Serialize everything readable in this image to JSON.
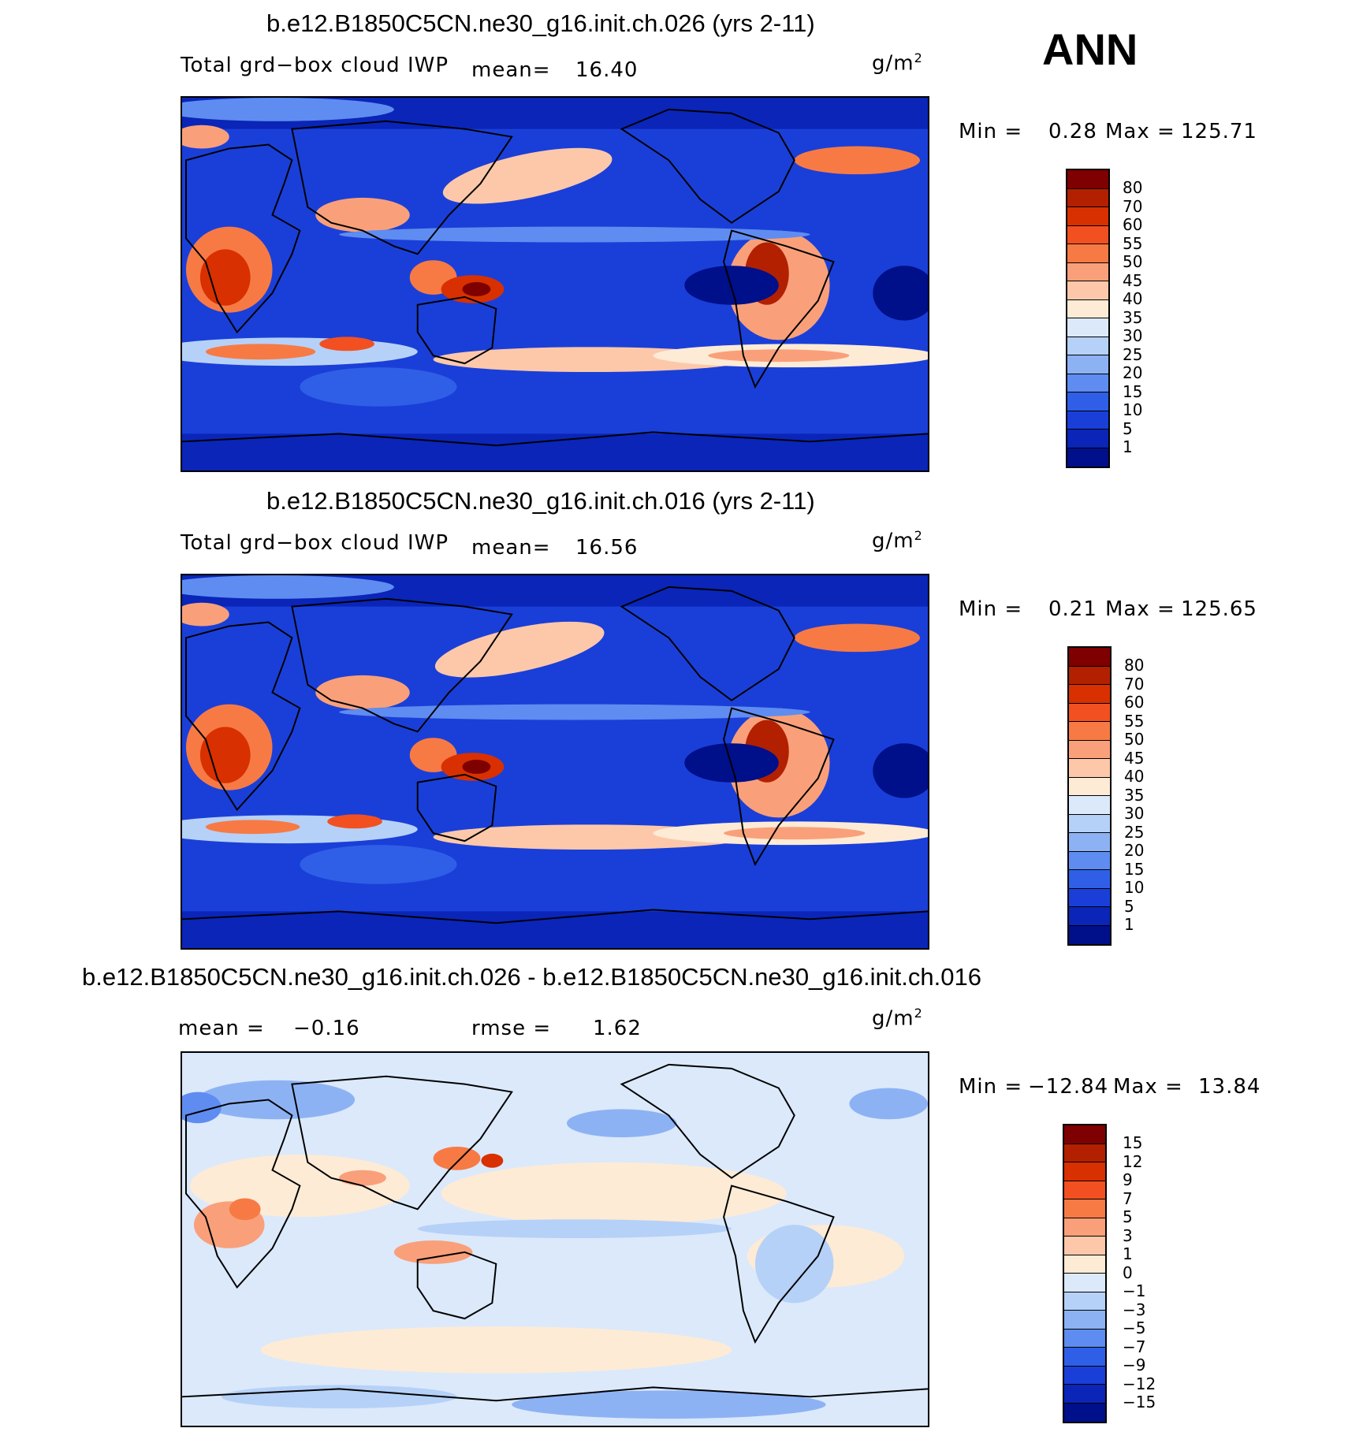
{
  "season": "ANN",
  "units_base": "g/m",
  "units_exp": "2",
  "panels": [
    {
      "title": "b.e12.B1850C5CN.ne30_g16.init.ch.026 (yrs 2-11)",
      "variable": "Total grd−box cloud IWP",
      "mean_label": "mean=",
      "mean_value": "16.40",
      "min_label": "Min =",
      "min_value": "0.28",
      "max_label": "Max =",
      "max_value": "125.71",
      "colorbar_labels": [
        "80",
        "70",
        "60",
        "55",
        "50",
        "45",
        "40",
        "35",
        "30",
        "25",
        "20",
        "15",
        "10",
        "5",
        "1"
      ]
    },
    {
      "title": "b.e12.B1850C5CN.ne30_g16.init.ch.016 (yrs 2-11)",
      "variable": "Total grd−box cloud IWP",
      "mean_label": "mean=",
      "mean_value": "16.56",
      "min_label": "Min =",
      "min_value": "0.21",
      "max_label": "Max =",
      "max_value": "125.65",
      "colorbar_labels": [
        "80",
        "70",
        "60",
        "55",
        "50",
        "45",
        "40",
        "35",
        "30",
        "25",
        "20",
        "15",
        "10",
        "5",
        "1"
      ]
    },
    {
      "title": "b.e12.B1850C5CN.ne30_g16.init.ch.026 - b.e12.B1850C5CN.ne30_g16.init.ch.016",
      "mean_label": "mean =",
      "mean_value": "−0.16",
      "rmse_label": "rmse =",
      "rmse_value": "1.62",
      "min_label": "Min =",
      "min_value": "−12.84",
      "max_label": "Max =",
      "max_value": "13.84",
      "colorbar_labels": [
        "15",
        "12",
        "9",
        "7",
        "5",
        "3",
        "1",
        "0",
        "−1",
        "−3",
        "−5",
        "−7",
        "−9",
        "−12",
        "−15"
      ]
    }
  ],
  "colors": {
    "abs_scale": [
      "#7f0000",
      "#b22000",
      "#d83000",
      "#f25020",
      "#f77a45",
      "#f9a07a",
      "#fdc8aa",
      "#fdebd6",
      "#dbe9fb",
      "#b6d1f7",
      "#8db2f4",
      "#5f8cf0",
      "#2f5fe6",
      "#1a3fd8",
      "#0a25b8",
      "#000f8a"
    ],
    "diff_scale": [
      "#7f0000",
      "#b22000",
      "#d83000",
      "#f25020",
      "#f77a45",
      "#f9a07a",
      "#fdc8aa",
      "#fdebd6",
      "#dbe9fb",
      "#b6d1f7",
      "#8db2f4",
      "#5f8cf0",
      "#2f5fe6",
      "#1a3fd8",
      "#0a25b8",
      "#000f8a"
    ],
    "ocean_base": "#1a3fd8",
    "diff_base": "#dbe9fb"
  }
}
